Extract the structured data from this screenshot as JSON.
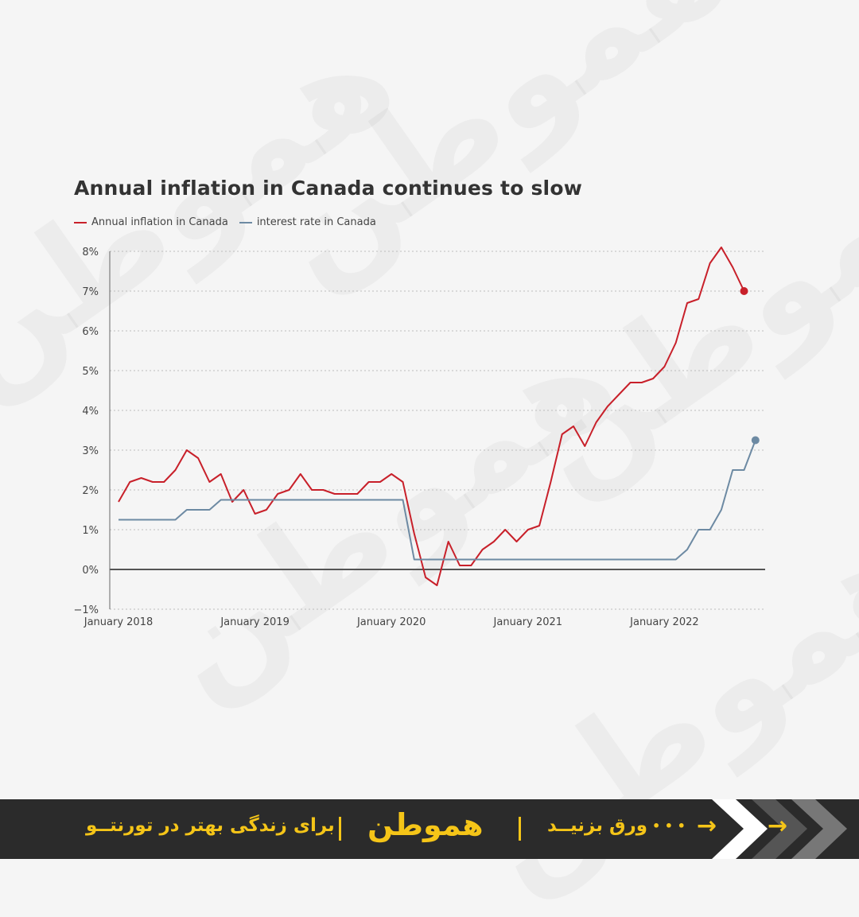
{
  "chart_data": {
    "type": "line",
    "title": "Annual inflation in Canada continues to slow",
    "xlabel": "",
    "ylabel": "",
    "x_tick_labels": [
      "January 2018",
      "January 2019",
      "January 2020",
      "January 2021",
      "January 2022"
    ],
    "y_tick_labels": [
      "8%",
      "7%",
      "6%",
      "5%",
      "4%",
      "3%",
      "2%",
      "1%",
      "0%",
      "−1%"
    ],
    "ylim": [
      -1,
      8
    ],
    "grid": true,
    "legend_position": "top-left",
    "x_start": "2018-01",
    "series": [
      {
        "name": "Annual inflation in Canada",
        "color": "#c8202a",
        "values": [
          1.7,
          2.2,
          2.3,
          2.2,
          2.2,
          2.5,
          3.0,
          2.8,
          2.2,
          2.4,
          1.7,
          2.0,
          1.4,
          1.5,
          1.9,
          2.0,
          2.4,
          2.0,
          2.0,
          1.9,
          1.9,
          1.9,
          2.2,
          2.2,
          2.4,
          2.2,
          0.9,
          -0.2,
          -0.4,
          0.7,
          0.1,
          0.1,
          0.5,
          0.7,
          1.0,
          0.7,
          1.0,
          1.1,
          2.2,
          3.4,
          3.6,
          3.1,
          3.7,
          4.1,
          4.4,
          4.7,
          4.7,
          4.8,
          5.1,
          5.7,
          6.7,
          6.8,
          7.7,
          8.1,
          7.6,
          7.0
        ]
      },
      {
        "name": "interest rate in Canada",
        "color": "#6d8aa3",
        "values": [
          1.25,
          1.25,
          1.25,
          1.25,
          1.25,
          1.25,
          1.5,
          1.5,
          1.5,
          1.75,
          1.75,
          1.75,
          1.75,
          1.75,
          1.75,
          1.75,
          1.75,
          1.75,
          1.75,
          1.75,
          1.75,
          1.75,
          1.75,
          1.75,
          1.75,
          1.75,
          0.25,
          0.25,
          0.25,
          0.25,
          0.25,
          0.25,
          0.25,
          0.25,
          0.25,
          0.25,
          0.25,
          0.25,
          0.25,
          0.25,
          0.25,
          0.25,
          0.25,
          0.25,
          0.25,
          0.25,
          0.25,
          0.25,
          0.25,
          0.25,
          0.5,
          1.0,
          1.0,
          1.5,
          2.5,
          2.5,
          3.25
        ]
      }
    ]
  },
  "footer": {
    "tagline": "برای زندگی بهتر در تورنتــو",
    "brand": "هموطن",
    "swipe_text": "ورق بزنیــد",
    "dots": "• • •",
    "arrow": "→"
  },
  "watermark_text": "هموطن",
  "colors": {
    "footer_bg": "#2b2b2b",
    "accent": "#f5c518"
  }
}
